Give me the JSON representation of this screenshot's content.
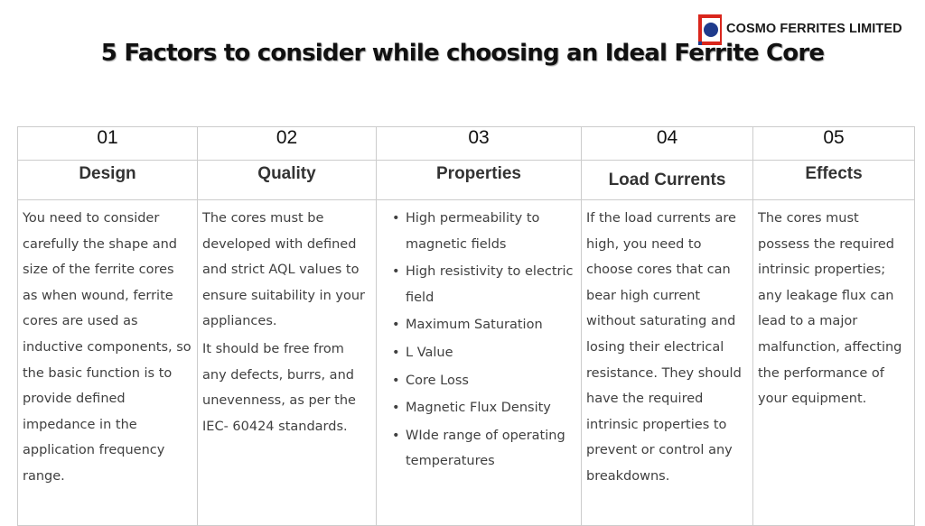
{
  "brand": {
    "name": "COSMO FERRITES LIMITED",
    "colors": {
      "red": "#d9261c",
      "navy": "#1f3b8c"
    }
  },
  "title": "5 Factors to consider while choosing an Ideal Ferrite Core",
  "factors": [
    {
      "number": "01",
      "heading": "Design",
      "paragraphs": [
        "You need to consider carefully the shape and size of the ferrite cores as when wound, ferrite cores are used as inductive components, so the basic function is to provide defined impedance in the application frequency range."
      ]
    },
    {
      "number": "02",
      "heading": "Quality",
      "paragraphs": [
        "The cores must be developed with defined and strict AQL values to ensure suitability in your appliances.",
        "It should be free from any defects, burrs, and unevenness, as per the IEC- 60424 standards."
      ]
    },
    {
      "number": "03",
      "heading": "Properties",
      "bullets": [
        "High permeability to magnetic fields",
        "High resistivity to electric field",
        "Maximum Saturation",
        "L Value",
        "Core Loss",
        "Magnetic Flux Density",
        "WIde range of operating temperatures"
      ]
    },
    {
      "number": "04",
      "heading": "Load Currents",
      "paragraphs": [
        "If the load currents are high, you need to choose cores that can bear high current without saturating and losing their electrical resistance. They should have the required intrinsic properties to prevent or control any breakdowns."
      ]
    },
    {
      "number": "05",
      "heading": "Effects",
      "paragraphs": [
        "The cores must possess the required intrinsic properties; any leakage flux can lead to a major malfunction, affecting the performance of your equipment."
      ]
    }
  ]
}
